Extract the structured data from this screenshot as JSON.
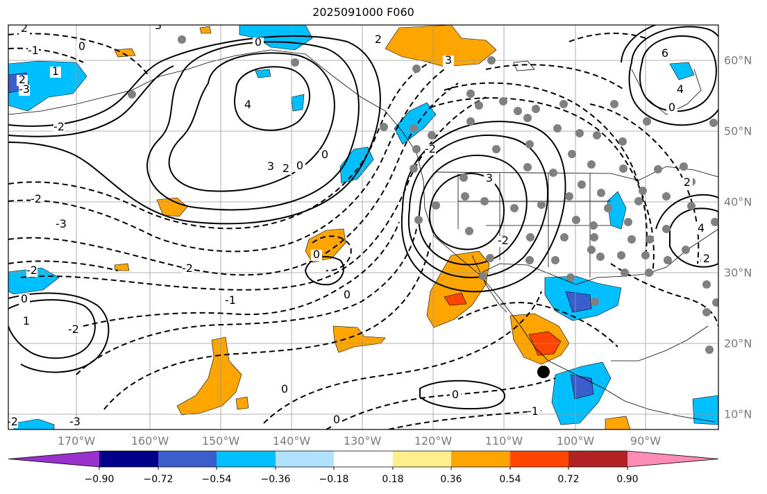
{
  "title": "2025091000 F060",
  "lon_labels": [
    "170°W",
    "160°W",
    "150°W",
    "140°W",
    "130°W",
    "120°W",
    "110°W",
    "100°W",
    "90°W"
  ],
  "lat_labels": [
    "60°N",
    "50°N",
    "40°N",
    "30°N",
    "20°N",
    "10°N"
  ],
  "colorbar": {
    "ticks": [
      "−0.90",
      "−0.72",
      "−0.54",
      "−0.36",
      "−0.18",
      "0.18",
      "0.36",
      "0.54",
      "0.72",
      "0.90"
    ],
    "colors": [
      "#9932cc",
      "#00008b",
      "#3a5fcd",
      "#00bfff",
      "#b0e2ff",
      "#ffffff",
      "#ffee8c",
      "#ffa500",
      "#ff4500",
      "#b22222",
      "#ff8cb4"
    ]
  },
  "contour_labels": [
    "2",
    "-1",
    "0",
    "3",
    "1",
    "2",
    "-2",
    "-3",
    "-2",
    "6",
    "4",
    "0",
    "4",
    "3",
    "2",
    "0",
    "2",
    "3",
    "3",
    "-3",
    "-2",
    "-2",
    "0",
    "2",
    "0",
    "-1",
    "0",
    "0",
    "0",
    "-1",
    "0",
    "-2",
    "1",
    "0",
    "-2",
    "-3",
    "-2",
    "0",
    "2",
    "4",
    "-2"
  ],
  "storm_marker": "tropical cyclone position"
}
